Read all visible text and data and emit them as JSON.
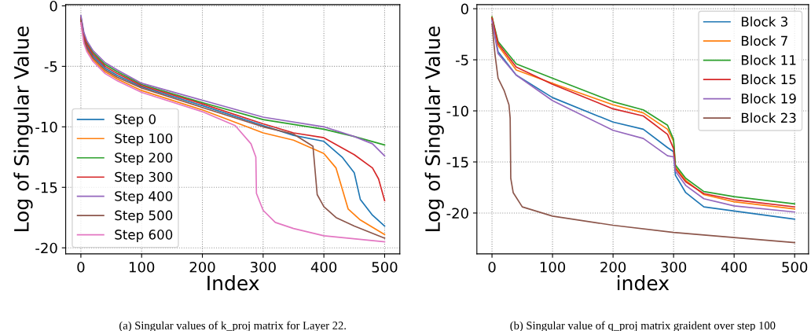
{
  "chart_data": [
    {
      "type": "line",
      "xlabel": "Index",
      "ylabel": "Log of Singular Value",
      "xlim": [
        -25,
        525
      ],
      "ylim": [
        -20.5,
        0.1
      ],
      "xticks": [
        0,
        100,
        200,
        300,
        400,
        500
      ],
      "yticks": [
        -20,
        -15,
        -10,
        -5,
        0
      ],
      "grid": true,
      "legend": "bottom left",
      "line_style": "solid",
      "annotations": [
        "(a) Singular values of k_proj matrix for Layer 22."
      ],
      "series": [
        {
          "name": "Step 0",
          "color": "#1f77b4",
          "x": [
            0,
            5,
            10,
            20,
            40,
            60,
            100,
            200,
            300,
            350,
            400,
            430,
            450,
            460,
            480,
            500
          ],
          "values": [
            -1.1,
            -2.65,
            -3.35,
            -4.15,
            -5.15,
            -5.75,
            -6.7,
            -8.25,
            -9.9,
            -10.7,
            -11.2,
            -12.5,
            -13.8,
            -16.0,
            -17.3,
            -18.2
          ]
        },
        {
          "name": "Step 100",
          "color": "#ff7f0e",
          "x": [
            0,
            5,
            10,
            20,
            40,
            60,
            100,
            200,
            300,
            350,
            400,
            420,
            430,
            440,
            460,
            500
          ],
          "values": [
            -1.3,
            -2.95,
            -3.65,
            -4.45,
            -5.45,
            -6.05,
            -7.0,
            -8.6,
            -10.5,
            -11.1,
            -12.2,
            -13.4,
            -15.1,
            -16.8,
            -17.7,
            -18.9
          ]
        },
        {
          "name": "Step 200",
          "color": "#2ca02c",
          "x": [
            0,
            5,
            10,
            20,
            40,
            60,
            100,
            200,
            300,
            400,
            450,
            500
          ],
          "values": [
            -0.9,
            -2.35,
            -3.05,
            -3.85,
            -4.85,
            -5.45,
            -6.5,
            -8.0,
            -9.4,
            -10.2,
            -10.8,
            -11.5
          ]
        },
        {
          "name": "Step 300",
          "color": "#d62728",
          "x": [
            0,
            5,
            10,
            20,
            40,
            60,
            100,
            200,
            300,
            350,
            400,
            450,
            480,
            490,
            500
          ],
          "values": [
            -1.0,
            -2.5,
            -3.2,
            -4.0,
            -5.0,
            -5.6,
            -6.6,
            -8.1,
            -9.75,
            -10.5,
            -10.9,
            -12.3,
            -13.4,
            -14.3,
            -16.1
          ]
        },
        {
          "name": "Step 400",
          "color": "#9467bd",
          "x": [
            0,
            5,
            10,
            20,
            40,
            60,
            100,
            200,
            300,
            400,
            450,
            480,
            500
          ],
          "values": [
            -0.8,
            -2.2,
            -2.9,
            -3.7,
            -4.7,
            -5.3,
            -6.4,
            -7.8,
            -9.2,
            -10.0,
            -10.8,
            -11.4,
            -12.4
          ]
        },
        {
          "name": "Step 500",
          "color": "#8c564b",
          "x": [
            0,
            5,
            10,
            20,
            40,
            60,
            100,
            200,
            300,
            350,
            382,
            389,
            400,
            420,
            450,
            500
          ],
          "values": [
            -1.2,
            -2.8,
            -3.5,
            -4.3,
            -5.3,
            -5.9,
            -6.8,
            -8.4,
            -10.0,
            -10.6,
            -11.6,
            -15.6,
            -16.6,
            -17.5,
            -18.2,
            -19.2
          ]
        },
        {
          "name": "Step 600",
          "color": "#e377c2",
          "x": [
            0,
            5,
            10,
            20,
            40,
            60,
            100,
            200,
            254,
            280,
            288,
            289,
            300,
            320,
            350,
            400,
            500
          ],
          "values": [
            -1.4,
            -3.1,
            -3.8,
            -4.6,
            -5.6,
            -6.2,
            -7.15,
            -8.75,
            -9.9,
            -11.4,
            -12.5,
            -15.5,
            -16.9,
            -17.9,
            -18.4,
            -19.0,
            -19.5
          ]
        }
      ]
    },
    {
      "type": "line",
      "xlabel": "index",
      "ylabel": "Log of Singular Value",
      "xlim": [
        -25,
        523
      ],
      "ylim": [
        -24,
        0.4
      ],
      "xticks": [
        0,
        100,
        200,
        300,
        400,
        500
      ],
      "yticks": [
        -20,
        -15,
        -10,
        -5,
        0
      ],
      "grid": true,
      "legend": "top right",
      "line_style": "solid",
      "annotations": [
        "(b) Singular value of q_proj matrix graident over step 100"
      ],
      "series": [
        {
          "name": "Block 3",
          "color": "#1f77b4",
          "x": [
            0,
            10,
            40,
            100,
            200,
            250,
            290,
            300,
            303,
            320,
            350,
            400,
            500
          ],
          "values": [
            -1,
            -4.2,
            -6.5,
            -8.7,
            -11.1,
            -11.8,
            -13.6,
            -14.0,
            -16.3,
            -18.0,
            -19.4,
            -19.8,
            -20.6
          ]
        },
        {
          "name": "Block 7",
          "color": "#ff7f0e",
          "x": [
            0,
            10,
            40,
            100,
            200,
            250,
            290,
            300,
            303,
            320,
            350,
            400,
            500
          ],
          "values": [
            -0.8,
            -3.6,
            -6.0,
            -7.3,
            -9.4,
            -10.2,
            -11.8,
            -13.0,
            -15.5,
            -16.8,
            -18.2,
            -18.9,
            -19.6
          ]
        },
        {
          "name": "Block 11",
          "color": "#2ca02c",
          "x": [
            0,
            10,
            40,
            100,
            200,
            250,
            290,
            300,
            303,
            320,
            350,
            400,
            500
          ],
          "values": [
            -0.8,
            -3.2,
            -5.4,
            -6.8,
            -9.1,
            -9.9,
            -11.4,
            -12.8,
            -15.3,
            -16.6,
            -17.9,
            -18.4,
            -19.1
          ]
        },
        {
          "name": "Block 15",
          "color": "#d62728",
          "x": [
            0,
            10,
            40,
            100,
            200,
            250,
            290,
            300,
            303,
            320,
            350,
            400,
            500
          ],
          "values": [
            -0.9,
            -3.4,
            -5.7,
            -7.4,
            -9.8,
            -10.5,
            -12.3,
            -13.7,
            -15.65,
            -16.95,
            -18.1,
            -18.7,
            -19.4
          ]
        },
        {
          "name": "Block 19",
          "color": "#9467bd",
          "x": [
            0,
            10,
            40,
            100,
            200,
            250,
            290,
            300,
            303,
            320,
            350,
            400,
            500
          ],
          "values": [
            -1.2,
            -4.4,
            -6.5,
            -9.0,
            -11.9,
            -12.7,
            -14.4,
            -14.5,
            -15.9,
            -17.3,
            -18.6,
            -19.3,
            -19.9
          ]
        },
        {
          "name": "Block 23",
          "color": "#8c564b",
          "x": [
            0,
            5,
            10,
            20,
            28,
            30,
            31,
            35,
            50,
            100,
            200,
            300,
            400,
            500
          ],
          "values": [
            -1.5,
            -4.5,
            -6.8,
            -8.0,
            -9.4,
            -10.7,
            -16.6,
            -18.0,
            -19.4,
            -20.3,
            -21.2,
            -21.9,
            -22.4,
            -22.9
          ]
        }
      ]
    }
  ]
}
